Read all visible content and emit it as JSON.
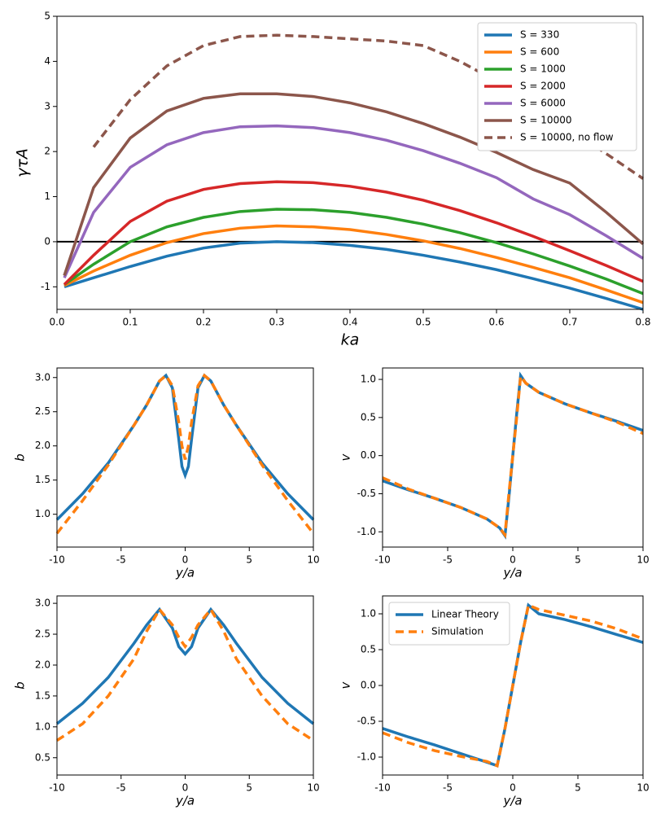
{
  "chart_data": [
    {
      "type": "line",
      "xlabel": "ka",
      "ylabel": "γτA",
      "x": [
        0.01,
        0.05,
        0.1,
        0.15,
        0.2,
        0.25,
        0.3,
        0.35,
        0.4,
        0.45,
        0.5,
        0.55,
        0.6,
        0.65,
        0.7,
        0.75,
        0.8
      ],
      "series": [
        {
          "name": "S = 330",
          "color": "#1f77b4",
          "values": [
            -1.0,
            -0.8,
            -0.55,
            -0.32,
            -0.14,
            -0.03,
            0.0,
            -0.02,
            -0.08,
            -0.17,
            -0.3,
            -0.45,
            -0.62,
            -0.82,
            -1.03,
            -1.26,
            -1.5
          ]
        },
        {
          "name": "S = 600",
          "color": "#ff7f0e",
          "values": [
            -0.97,
            -0.65,
            -0.3,
            -0.02,
            0.18,
            0.3,
            0.35,
            0.33,
            0.27,
            0.16,
            0.02,
            -0.15,
            -0.35,
            -0.57,
            -0.8,
            -1.07,
            -1.35
          ]
        },
        {
          "name": "S = 1000",
          "color": "#2ca02c",
          "values": [
            -0.95,
            -0.5,
            0.0,
            0.33,
            0.54,
            0.67,
            0.72,
            0.71,
            0.65,
            0.54,
            0.39,
            0.2,
            -0.02,
            -0.27,
            -0.54,
            -0.83,
            -1.15
          ]
        },
        {
          "name": "S = 2000",
          "color": "#d62728",
          "values": [
            -0.95,
            -0.3,
            0.45,
            0.9,
            1.16,
            1.29,
            1.33,
            1.31,
            1.23,
            1.1,
            0.92,
            0.69,
            0.42,
            0.12,
            -0.2,
            -0.53,
            -0.88
          ]
        },
        {
          "name": "S = 6000",
          "color": "#9467bd",
          "values": [
            -0.8,
            0.65,
            1.65,
            2.15,
            2.42,
            2.55,
            2.57,
            2.53,
            2.42,
            2.25,
            2.02,
            1.74,
            1.42,
            0.95,
            0.6,
            0.13,
            -0.37
          ]
        },
        {
          "name": "S = 10000",
          "color": "#8c564b",
          "values": [
            -0.75,
            1.2,
            2.3,
            2.9,
            3.18,
            3.28,
            3.28,
            3.22,
            3.08,
            2.88,
            2.62,
            2.32,
            1.98,
            1.6,
            1.3,
            0.65,
            -0.05
          ]
        },
        {
          "name": "S = 10000, no flow",
          "color": "#8c564b",
          "dash": true,
          "values": [
            null,
            2.1,
            3.15,
            3.9,
            4.35,
            4.55,
            4.58,
            4.55,
            4.5,
            4.45,
            4.35,
            4.0,
            3.56,
            3.05,
            2.5,
            1.95,
            1.4
          ]
        }
      ],
      "hline": 0,
      "legend": "upper right",
      "xlim": [
        0,
        0.8
      ],
      "xticks": [
        {
          "value": 0,
          "label": "0.0"
        },
        0.1,
        0.2,
        0.3,
        0.4,
        0.5,
        0.6,
        0.7,
        0.8
      ],
      "ylim": [
        -1.5,
        5
      ],
      "yticks": [
        -1,
        0,
        1,
        2,
        3,
        4,
        5
      ]
    },
    {
      "type": "line",
      "xlabel": "y/a",
      "ylabel": "b",
      "x": [
        -10,
        -8,
        -6,
        -4,
        -3,
        -2,
        -1.5,
        -1,
        -0.5,
        -0.25,
        0,
        0.25,
        0.5,
        1,
        1.5,
        2,
        3,
        4,
        6,
        8,
        10
      ],
      "series": [
        {
          "color": "#1f77b4",
          "values": [
            0.92,
            1.3,
            1.75,
            2.3,
            2.6,
            2.95,
            3.03,
            2.85,
            2.1,
            1.7,
            1.57,
            1.7,
            2.1,
            2.85,
            3.03,
            2.95,
            2.6,
            2.3,
            1.75,
            1.3,
            0.92
          ]
        },
        {
          "color": "#ff7f0e",
          "dash": true,
          "values": [
            0.72,
            1.2,
            1.72,
            2.3,
            2.6,
            2.95,
            3.03,
            2.88,
            2.35,
            2.0,
            1.8,
            2.0,
            2.35,
            2.88,
            3.03,
            2.95,
            2.6,
            2.3,
            1.72,
            1.2,
            0.72
          ]
        }
      ],
      "xlim": [
        -10,
        10
      ],
      "xticks": [
        -10,
        -5,
        0,
        5,
        10
      ],
      "ylim": [
        0.52,
        3.14
      ],
      "yticks": [
        {
          "value": 1,
          "label": "1.0"
        },
        1.5,
        {
          "value": 2,
          "label": "2.0"
        },
        2.5,
        {
          "value": 3,
          "label": "3.0"
        }
      ]
    },
    {
      "type": "line",
      "xlabel": "y/a",
      "ylabel": "v",
      "x": [
        -10,
        -8,
        -6,
        -4,
        -2,
        -1,
        -0.6,
        -0.3,
        0,
        0.3,
        0.6,
        1,
        2,
        4,
        6,
        8,
        10
      ],
      "series": [
        {
          "color": "#1f77b4",
          "values": [
            -0.33,
            -0.45,
            -0.56,
            -0.68,
            -0.83,
            -0.95,
            -1.05,
            -0.55,
            0,
            0.55,
            1.05,
            0.95,
            0.83,
            0.68,
            0.56,
            0.45,
            0.33
          ]
        },
        {
          "color": "#ff7f0e",
          "dash": true,
          "values": [
            -0.29,
            -0.44,
            -0.56,
            -0.68,
            -0.83,
            -0.95,
            -1.04,
            -0.5,
            0,
            0.5,
            1.04,
            0.95,
            0.83,
            0.68,
            0.56,
            0.44,
            0.29
          ]
        }
      ],
      "xlim": [
        -10,
        10
      ],
      "xticks": [
        -10,
        -5,
        0,
        5,
        10
      ],
      "ylim": [
        -1.2,
        1.15
      ],
      "yticks": [
        {
          "value": -1,
          "label": "-1.0"
        },
        -0.5,
        {
          "value": 0,
          "label": "0.0"
        },
        0.5,
        {
          "value": 1,
          "label": "1.0"
        }
      ]
    },
    {
      "type": "line",
      "xlabel": "y/a",
      "ylabel": "b",
      "x": [
        -10,
        -8,
        -6,
        -4,
        -3,
        -2,
        -1,
        -0.5,
        0,
        0.5,
        1,
        2,
        3,
        4,
        6,
        8,
        10
      ],
      "series": [
        {
          "color": "#1f77b4",
          "values": [
            1.05,
            1.38,
            1.8,
            2.35,
            2.65,
            2.9,
            2.6,
            2.3,
            2.18,
            2.3,
            2.6,
            2.9,
            2.65,
            2.35,
            1.8,
            1.38,
            1.05
          ]
        },
        {
          "color": "#ff7f0e",
          "dash": true,
          "values": [
            0.78,
            1.05,
            1.5,
            2.1,
            2.55,
            2.9,
            2.65,
            2.45,
            2.3,
            2.45,
            2.65,
            2.9,
            2.55,
            2.1,
            1.5,
            1.05,
            0.78
          ]
        }
      ],
      "xlim": [
        -10,
        10
      ],
      "xticks": [
        -10,
        -5,
        0,
        5,
        10
      ],
      "ylim": [
        0.22,
        3.12
      ],
      "yticks": [
        0.5,
        {
          "value": 1,
          "label": "1.0"
        },
        1.5,
        {
          "value": 2,
          "label": "2.0"
        },
        2.5,
        {
          "value": 3,
          "label": "3.0"
        }
      ]
    },
    {
      "type": "line",
      "xlabel": "y/a",
      "ylabel": "v",
      "x": [
        -10,
        -8,
        -6,
        -4,
        -2,
        -1.2,
        -0.6,
        0,
        0.6,
        1.2,
        2,
        4,
        6,
        8,
        10
      ],
      "series": [
        {
          "name": "Linear Theory",
          "color": "#1f77b4",
          "values": [
            -0.6,
            -0.72,
            -0.83,
            -0.95,
            -1.07,
            -1.12,
            -0.6,
            0,
            0.6,
            1.12,
            1.0,
            0.92,
            0.82,
            0.71,
            0.6
          ]
        },
        {
          "name": "Simulation",
          "color": "#ff7f0e",
          "dash": true,
          "values": [
            -0.66,
            -0.8,
            -0.91,
            -0.99,
            -1.06,
            -1.12,
            -0.6,
            0,
            0.6,
            1.12,
            1.06,
            0.98,
            0.9,
            0.79,
            0.65
          ]
        }
      ],
      "legend": "upper left",
      "xlim": [
        -10,
        10
      ],
      "xticks": [
        -10,
        -5,
        0,
        5,
        10
      ],
      "ylim": [
        -1.25,
        1.25
      ],
      "yticks": [
        {
          "value": -1,
          "label": "-1.0"
        },
        -0.5,
        {
          "value": 0,
          "label": "0.0"
        },
        0.5,
        {
          "value": 1,
          "label": "1.0"
        }
      ]
    }
  ]
}
